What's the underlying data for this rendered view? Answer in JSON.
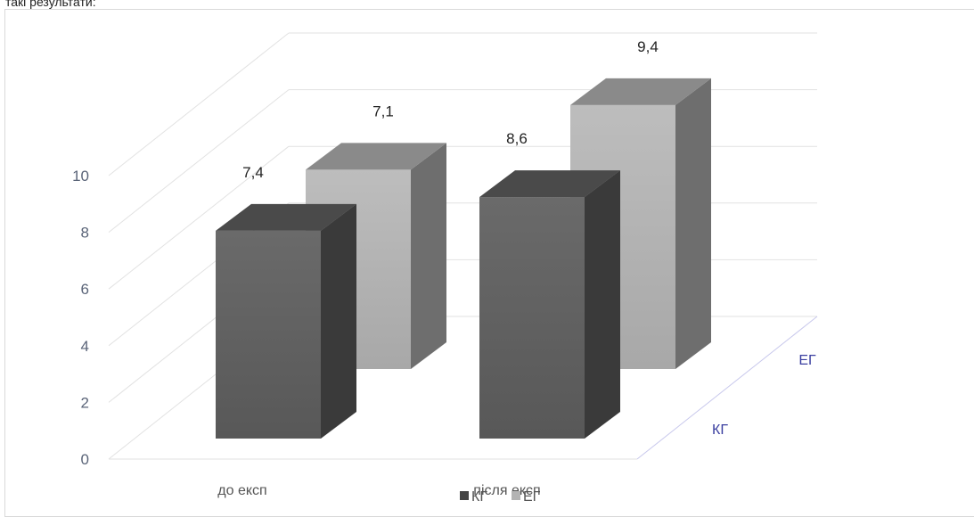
{
  "doc": {
    "fragment": "такі результати:"
  },
  "chart_data": {
    "type": "bar",
    "categories": [
      "до експ",
      "після експ"
    ],
    "series": [
      {
        "name": "КГ",
        "values": [
          7.4,
          8.6
        ],
        "color": "#5e5e5e"
      },
      {
        "name": "ЕГ",
        "values": [
          7.1,
          9.4
        ],
        "color": "#b3b3b3"
      }
    ],
    "data_labels": [
      "7,4",
      "8,6",
      "7,1",
      "9,4"
    ],
    "y_ticks": [
      "0",
      "2",
      "4",
      "6",
      "8",
      "10"
    ],
    "ylim": [
      0,
      10
    ],
    "series_axis_labels": [
      "КГ",
      "ЕГ"
    ],
    "legend": {
      "position": "bottom",
      "labels": [
        "КГ",
        "ЕГ"
      ]
    },
    "grid": true,
    "style": "3d-clustered-column"
  }
}
